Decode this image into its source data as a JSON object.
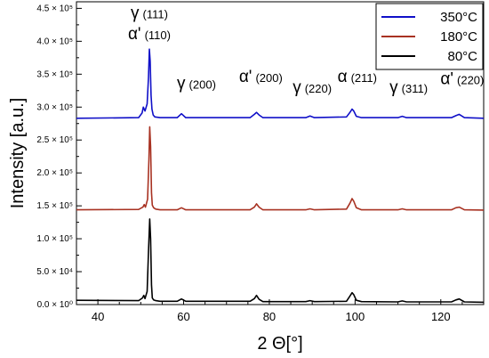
{
  "chart_data": {
    "type": "line",
    "xlabel": "2 Θ[°]",
    "ylabel": "Intensity [a.u.]",
    "xlim": [
      35,
      130
    ],
    "ylim": [
      0,
      460000
    ],
    "x_ticks": [
      40,
      60,
      80,
      100,
      120
    ],
    "x_tick_labels": [
      "40",
      "60",
      "80",
      "100",
      "120"
    ],
    "y_ticks": [
      0,
      50000,
      100000,
      150000,
      200000,
      250000,
      300000,
      350000,
      400000,
      450000
    ],
    "y_tick_labels": [
      "0.0 × 10⁰",
      "5.0 × 10⁴",
      "1.0 × 10⁵",
      "1.5 × 10⁵",
      "2.0 × 10⁵",
      "2.5 × 10⁵",
      "3.0 × 10⁵",
      "3.5 × 10⁵",
      "4.0 × 10⁵",
      "4.5 × 10⁵"
    ],
    "legend_position": "top-right",
    "grid": false,
    "series": [
      {
        "name": "350°C",
        "color": "#1010c8",
        "x": [
          35,
          49.5,
          50.3,
          50.6,
          51.0,
          51.5,
          51.8,
          52.0,
          52.2,
          52.4,
          52.6,
          52.9,
          53.3,
          54.5,
          58.5,
          59.5,
          60.5,
          75.5,
          76.5,
          77.0,
          77.6,
          78.5,
          88.5,
          89.5,
          90.5,
          98.0,
          98.8,
          99.3,
          99.7,
          100.3,
          101.5,
          110.0,
          111.0,
          112.0,
          122.5,
          123.5,
          124.3,
          125.5,
          130
        ],
        "y": [
          283000,
          284000,
          291000,
          300000,
          294000,
          305000,
          345000,
          388000,
          370000,
          318000,
          297000,
          288000,
          285000,
          284000,
          284000,
          290000,
          284000,
          284000,
          289000,
          292000,
          288000,
          284000,
          284000,
          286500,
          284000,
          285000,
          292000,
          297000,
          294000,
          286000,
          284000,
          284000,
          286000,
          284000,
          284000,
          287000,
          289000,
          284000,
          283000
        ]
      },
      {
        "name": "180°C",
        "color": "#a83222",
        "x": [
          35,
          49.5,
          50.5,
          50.8,
          51.1,
          51.6,
          51.9,
          52.1,
          52.3,
          52.5,
          52.7,
          53.0,
          53.5,
          54.5,
          58.5,
          59.5,
          60.5,
          75.5,
          76.5,
          77.0,
          77.6,
          78.5,
          88.5,
          89.5,
          90.5,
          98.0,
          98.8,
          99.3,
          99.7,
          100.3,
          101.5,
          110.0,
          111.0,
          112.0,
          122.5,
          123.5,
          124.3,
          125.5,
          130
        ],
        "y": [
          144000,
          144500,
          148000,
          152000,
          148000,
          160000,
          220000,
          270000,
          240000,
          170000,
          151000,
          147000,
          145000,
          144000,
          144000,
          147000,
          144000,
          144000,
          148000,
          153000,
          148000,
          144000,
          144000,
          145500,
          144000,
          145000,
          154000,
          161000,
          157000,
          147000,
          144000,
          144000,
          145500,
          144000,
          144000,
          147000,
          148000,
          144000,
          143500
        ]
      },
      {
        "name": "80°C",
        "color": "#000000",
        "x": [
          35,
          49.5,
          50.4,
          50.7,
          51.0,
          51.5,
          51.8,
          52.1,
          52.3,
          52.5,
          52.7,
          53.0,
          53.5,
          54.5,
          58.5,
          59.5,
          60.5,
          75.5,
          76.5,
          77.0,
          77.6,
          78.5,
          88.5,
          89.5,
          90.5,
          98.0,
          98.8,
          99.3,
          99.7,
          100.3,
          101.5,
          110.0,
          111.0,
          112.0,
          122.5,
          123.5,
          124.3,
          125.5,
          130
        ],
        "y": [
          6500,
          6000,
          10000,
          14000,
          9000,
          20000,
          80000,
          130000,
          100000,
          30000,
          10000,
          7000,
          6000,
          5000,
          5000,
          8500,
          5000,
          5000,
          9000,
          14000,
          8000,
          4500,
          4500,
          6000,
          4500,
          5000,
          13000,
          18000,
          15000,
          6500,
          4500,
          4000,
          5500,
          4000,
          4000,
          7000,
          8500,
          4000,
          3500
        ]
      }
    ],
    "annotations": [
      {
        "greek": "γ",
        "hkl": "(111)",
        "x": 52.0,
        "y": 435000
      },
      {
        "greek": "α'",
        "hkl": "(110)",
        "x": 52.0,
        "y": 403000
      },
      {
        "greek": "γ",
        "hkl": "(200)",
        "x": 63.0,
        "y": 328000
      },
      {
        "greek": "α'",
        "hkl": "(200)",
        "x": 78.0,
        "y": 338000
      },
      {
        "greek": "γ",
        "hkl": "(220)",
        "x": 90.0,
        "y": 322000
      },
      {
        "greek": "α",
        "hkl": "(211)",
        "x": 100.5,
        "y": 338000
      },
      {
        "greek": "γ",
        "hkl": "(311)",
        "x": 112.5,
        "y": 322000
      },
      {
        "greek": "α'",
        "hkl": "(220)",
        "x": 125.0,
        "y": 335000
      }
    ]
  }
}
